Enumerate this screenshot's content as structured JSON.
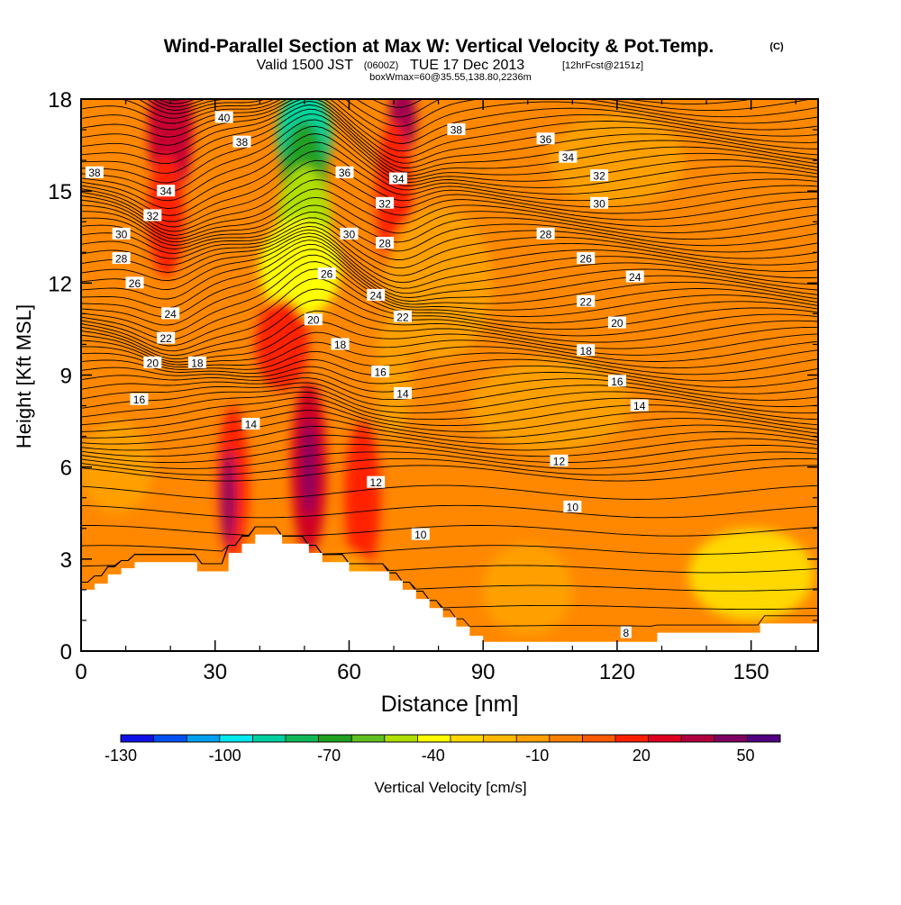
{
  "header": {
    "title": "Wind-Parallel Section at Max W: Vertical Velocity & Pot.Temp.",
    "copyright": "(C)",
    "valid_prefix": "Valid 1500 JST",
    "valid_z": "(0600Z)",
    "valid_date": "TUE 17 Dec 2013",
    "forecast": "[12hrFcst@2151z]",
    "box_info": "boxWmax=60@35.55,138.80,2236m"
  },
  "chart_data": {
    "type": "contour",
    "xlabel": "Distance [nm]",
    "ylabel": "Height [Kft MSL]",
    "xlim": [
      0,
      165
    ],
    "ylim": [
      0,
      18
    ],
    "x_ticks": [
      "0",
      "30",
      "60",
      "90",
      "120",
      "150"
    ],
    "y_ticks": [
      "0",
      "3",
      "6",
      "9",
      "12",
      "15",
      "18"
    ],
    "colorbar": {
      "label": "Vertical Velocity [cm/s]",
      "tick_labels": [
        "-130",
        "-100",
        "-70",
        "-40",
        "-10",
        "20",
        "50"
      ],
      "colors": [
        "#1010e8",
        "#0050f0",
        "#00a0f0",
        "#00e8f0",
        "#00d0a0",
        "#10b858",
        "#20a020",
        "#60c020",
        "#b0e000",
        "#ffff00",
        "#ffd800",
        "#ffb800",
        "#ffa000",
        "#ff8000",
        "#ff5a00",
        "#ff2000",
        "#e00020",
        "#b00040",
        "#800060",
        "#500080"
      ]
    },
    "background_level": "#ff8800",
    "w_features": [
      {
        "x": 20,
        "y": 17.0,
        "rx": 5,
        "ry": 2.2,
        "color": "#c80030"
      },
      {
        "x": 19,
        "y": 14.2,
        "rx": 4,
        "ry": 2.0,
        "color": "#ff2000"
      },
      {
        "x": 50,
        "y": 16.8,
        "rx": 6,
        "ry": 1.6,
        "color": "#00d8a0"
      },
      {
        "x": 50,
        "y": 15.5,
        "rx": 5,
        "ry": 1.8,
        "color": "#20a020"
      },
      {
        "x": 50,
        "y": 14.0,
        "rx": 6,
        "ry": 1.8,
        "color": "#b0e000"
      },
      {
        "x": 49,
        "y": 12.5,
        "rx": 9,
        "ry": 1.6,
        "color": "#ffff00"
      },
      {
        "x": 72,
        "y": 17.4,
        "rx": 3,
        "ry": 1.2,
        "color": "#a00050"
      },
      {
        "x": 70,
        "y": 14.8,
        "rx": 4,
        "ry": 2.5,
        "color": "#ff2000"
      },
      {
        "x": 45,
        "y": 10.0,
        "rx": 6,
        "ry": 1.5,
        "color": "#ff2000"
      },
      {
        "x": 34,
        "y": 5.5,
        "rx": 3.5,
        "ry": 2.5,
        "color": "#ff2000"
      },
      {
        "x": 33,
        "y": 5.0,
        "rx": 1.5,
        "ry": 1.6,
        "color": "#800060"
      },
      {
        "x": 51,
        "y": 6.0,
        "rx": 4,
        "ry": 2.8,
        "color": "#d00020"
      },
      {
        "x": 51,
        "y": 6.0,
        "rx": 1.6,
        "ry": 1.6,
        "color": "#800060"
      },
      {
        "x": 63,
        "y": 5.0,
        "rx": 4,
        "ry": 2.5,
        "color": "#ff2000"
      },
      {
        "x": 70,
        "y": 9.0,
        "rx": 4,
        "ry": 2.0,
        "color": "#ffa000"
      },
      {
        "x": 80,
        "y": 12.0,
        "rx": 12,
        "ry": 2.5,
        "color": "#ffa000"
      },
      {
        "x": 105,
        "y": 8.0,
        "rx": 18,
        "ry": 1.5,
        "color": "#ffa000"
      },
      {
        "x": 120,
        "y": 16.0,
        "rx": 15,
        "ry": 1.5,
        "color": "#ffa000"
      },
      {
        "x": 150,
        "y": 2.5,
        "rx": 14,
        "ry": 1.5,
        "color": "#ffd800"
      },
      {
        "x": 100,
        "y": 2.0,
        "rx": 10,
        "ry": 1.5,
        "color": "#ffa000"
      },
      {
        "x": 60,
        "y": 2.0,
        "rx": 6,
        "ry": 1.2,
        "color": "#ffa000"
      },
      {
        "x": 8,
        "y": 6.0,
        "rx": 8,
        "ry": 1.5,
        "color": "#ffa000"
      }
    ],
    "terrain": [
      [
        0,
        2
      ],
      [
        3,
        2
      ],
      [
        3,
        2.2
      ],
      [
        6,
        2.2
      ],
      [
        6,
        2.5
      ],
      [
        9,
        2.5
      ],
      [
        9,
        2.7
      ],
      [
        12,
        2.7
      ],
      [
        12,
        2.9
      ],
      [
        26,
        2.9
      ],
      [
        26,
        2.6
      ],
      [
        33,
        2.6
      ],
      [
        33,
        3.2
      ],
      [
        36,
        3.2
      ],
      [
        36,
        3.5
      ],
      [
        39,
        3.5
      ],
      [
        39,
        3.8
      ],
      [
        45,
        3.8
      ],
      [
        45,
        3.5
      ],
      [
        51,
        3.5
      ],
      [
        51,
        3.2
      ],
      [
        54,
        3.2
      ],
      [
        54,
        2.9
      ],
      [
        60,
        2.9
      ],
      [
        60,
        2.6
      ],
      [
        69,
        2.6
      ],
      [
        69,
        2.3
      ],
      [
        72,
        2.3
      ],
      [
        72,
        2.0
      ],
      [
        75,
        2.0
      ],
      [
        75,
        1.7
      ],
      [
        78,
        1.7
      ],
      [
        78,
        1.4
      ],
      [
        81,
        1.4
      ],
      [
        81,
        1.1
      ],
      [
        84,
        1.1
      ],
      [
        84,
        0.8
      ],
      [
        87,
        0.8
      ],
      [
        87,
        0.5
      ],
      [
        90,
        0.5
      ],
      [
        90,
        0.3
      ],
      [
        129,
        0.3
      ],
      [
        129,
        0.6
      ],
      [
        152,
        0.6
      ],
      [
        152,
        0.9
      ],
      [
        165,
        0.9
      ]
    ],
    "theta_levels": [
      8,
      10,
      12,
      14,
      16,
      18,
      20,
      22,
      24,
      26,
      28,
      30,
      32,
      34,
      36,
      38,
      40
    ],
    "theta_labels": [
      {
        "text": "40",
        "x": 32,
        "y": 17.4
      },
      {
        "text": "38",
        "x": 36,
        "y": 16.6
      },
      {
        "text": "38",
        "x": 3,
        "y": 15.6
      },
      {
        "text": "36",
        "x": 59,
        "y": 15.6
      },
      {
        "text": "34",
        "x": 19,
        "y": 15.0
      },
      {
        "text": "32",
        "x": 16,
        "y": 14.2
      },
      {
        "text": "30",
        "x": 9,
        "y": 13.6
      },
      {
        "text": "28",
        "x": 9,
        "y": 12.8
      },
      {
        "text": "26",
        "x": 12,
        "y": 12.0
      },
      {
        "text": "24",
        "x": 20,
        "y": 11.0
      },
      {
        "text": "22",
        "x": 19,
        "y": 10.2
      },
      {
        "text": "20",
        "x": 16,
        "y": 9.4
      },
      {
        "text": "18",
        "x": 26,
        "y": 9.4
      },
      {
        "text": "16",
        "x": 13,
        "y": 8.2
      },
      {
        "text": "26",
        "x": 55,
        "y": 12.3
      },
      {
        "text": "30",
        "x": 60,
        "y": 13.6
      },
      {
        "text": "28",
        "x": 68,
        "y": 13.3
      },
      {
        "text": "32",
        "x": 68,
        "y": 14.6
      },
      {
        "text": "34",
        "x": 71,
        "y": 15.4
      },
      {
        "text": "24",
        "x": 66,
        "y": 11.6
      },
      {
        "text": "22",
        "x": 72,
        "y": 10.9
      },
      {
        "text": "20",
        "x": 52,
        "y": 10.8
      },
      {
        "text": "18",
        "x": 58,
        "y": 10.0
      },
      {
        "text": "16",
        "x": 67,
        "y": 9.1
      },
      {
        "text": "14",
        "x": 72,
        "y": 8.4
      },
      {
        "text": "14",
        "x": 38,
        "y": 7.4
      },
      {
        "text": "12",
        "x": 66,
        "y": 5.5
      },
      {
        "text": "10",
        "x": 76,
        "y": 3.8
      },
      {
        "text": "38",
        "x": 84,
        "y": 17.0
      },
      {
        "text": "36",
        "x": 104,
        "y": 16.7
      },
      {
        "text": "34",
        "x": 109,
        "y": 16.1
      },
      {
        "text": "32",
        "x": 116,
        "y": 15.5
      },
      {
        "text": "30",
        "x": 116,
        "y": 14.6
      },
      {
        "text": "28",
        "x": 104,
        "y": 13.6
      },
      {
        "text": "26",
        "x": 113,
        "y": 12.8
      },
      {
        "text": "24",
        "x": 124,
        "y": 12.2
      },
      {
        "text": "22",
        "x": 113,
        "y": 11.4
      },
      {
        "text": "20",
        "x": 120,
        "y": 10.7
      },
      {
        "text": "18",
        "x": 113,
        "y": 9.8
      },
      {
        "text": "16",
        "x": 120,
        "y": 8.8
      },
      {
        "text": "14",
        "x": 125,
        "y": 8.0
      },
      {
        "text": "12",
        "x": 107,
        "y": 6.2
      },
      {
        "text": "10",
        "x": 110,
        "y": 4.7
      },
      {
        "text": "8",
        "x": 122,
        "y": 0.6
      }
    ]
  }
}
